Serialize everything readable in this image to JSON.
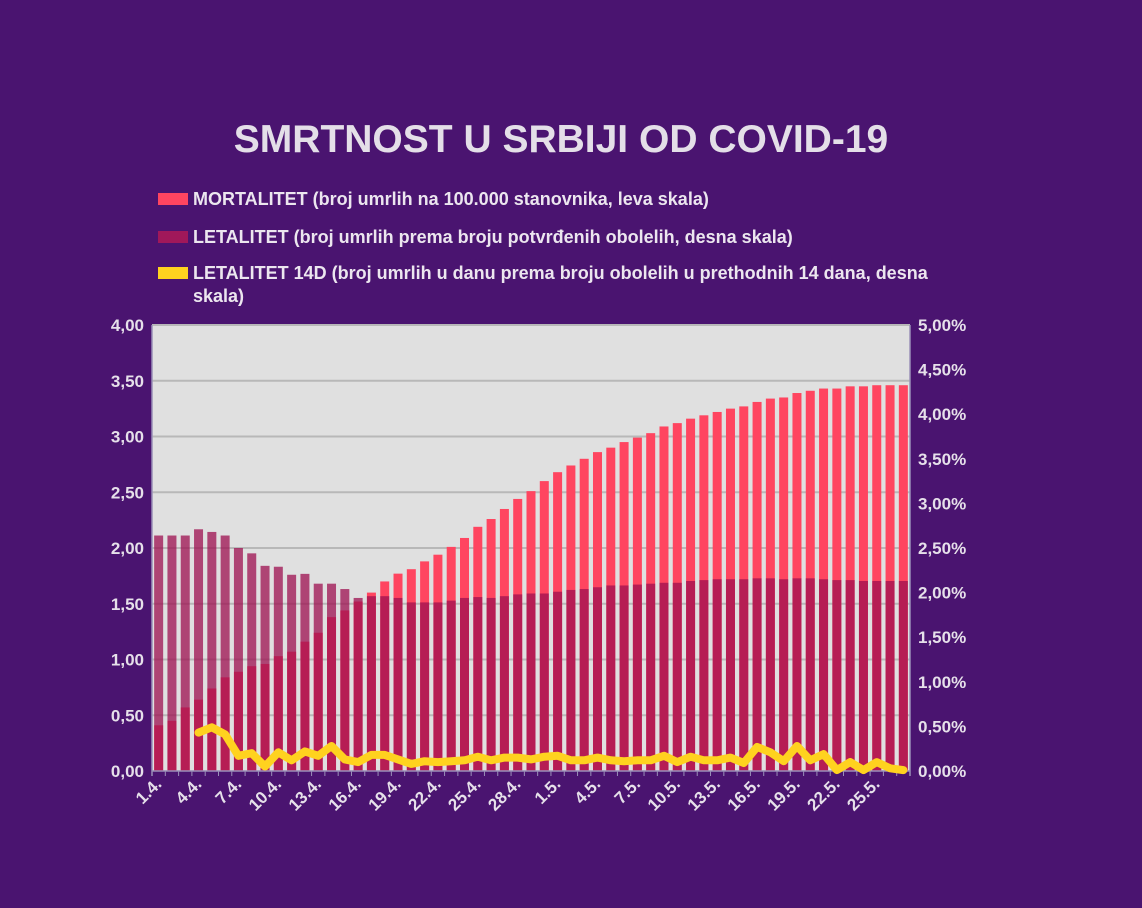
{
  "chart_data": {
    "type": "bar",
    "title": "SMRTNOST U SRBIJI OD COVID-19",
    "legend_position": "top",
    "grid": true,
    "categories": [
      "1.4.",
      "2.4.",
      "3.4.",
      "4.4.",
      "5.4.",
      "6.4.",
      "7.4.",
      "8.4.",
      "9.4.",
      "10.4.",
      "11.4.",
      "12.4.",
      "13.4.",
      "14.4.",
      "15.4.",
      "16.4.",
      "17.4.",
      "18.4.",
      "19.4.",
      "20.4.",
      "21.4.",
      "22.4.",
      "23.4.",
      "24.4.",
      "25.4.",
      "26.4.",
      "27.4.",
      "28.4.",
      "29.4.",
      "30.4.",
      "1.5.",
      "2.5.",
      "3.5.",
      "4.5.",
      "5.5.",
      "6.5.",
      "7.5.",
      "8.5.",
      "9.5.",
      "10.5.",
      "11.5.",
      "12.5.",
      "13.5.",
      "14.5.",
      "15.5.",
      "16.5.",
      "17.5.",
      "18.5.",
      "19.5.",
      "20.5.",
      "21.5.",
      "22.5.",
      "23.5.",
      "24.5.",
      "25.5.",
      "26.5.",
      "27.5."
    ],
    "x_tick_labels": [
      "1.4.",
      "4.4.",
      "7.4.",
      "10.4.",
      "13.4.",
      "16.4.",
      "19.4.",
      "22.4.",
      "25.4.",
      "28.4.",
      "1.5.",
      "4.5.",
      "7.5.",
      "10.5.",
      "13.5.",
      "16.5.",
      "19.5.",
      "22.5.",
      "25.5."
    ],
    "y_left": {
      "range": [
        0,
        4
      ],
      "ticks": [
        "0,00",
        "0,50",
        "1,00",
        "1,50",
        "2,00",
        "2,50",
        "3,00",
        "3,50",
        "4,00"
      ]
    },
    "y_right": {
      "range": [
        0,
        5
      ],
      "unit": "%",
      "ticks": [
        "0,00%",
        "0,50%",
        "1,00%",
        "1,50%",
        "2,00%",
        "2,50%",
        "3,00%",
        "3,50%",
        "4,00%",
        "4,50%",
        "5,00%"
      ]
    },
    "series": [
      {
        "name": "MORTALITET (broj umrlih na 100.000 stanovnika, leva skala)",
        "type": "bar",
        "axis": "left",
        "color": "#ff4560",
        "values": [
          0.41,
          0.45,
          0.57,
          0.64,
          0.74,
          0.84,
          0.89,
          0.94,
          0.96,
          1.03,
          1.07,
          1.16,
          1.24,
          1.38,
          1.44,
          1.52,
          1.6,
          1.7,
          1.77,
          1.81,
          1.88,
          1.94,
          2.01,
          2.09,
          2.19,
          2.26,
          2.35,
          2.44,
          2.51,
          2.6,
          2.68,
          2.74,
          2.8,
          2.86,
          2.9,
          2.95,
          2.99,
          3.03,
          3.09,
          3.12,
          3.16,
          3.19,
          3.22,
          3.25,
          3.27,
          3.31,
          3.34,
          3.35,
          3.39,
          3.41,
          3.43,
          3.43,
          3.45,
          3.45,
          3.46,
          3.46,
          3.46
        ]
      },
      {
        "name": "LETALITET (broj umrlih prema broju potvrđenih obolelih, desna skala)",
        "type": "bar",
        "axis": "right",
        "color": "#9e1050",
        "values": [
          2.64,
          2.64,
          2.64,
          2.71,
          2.68,
          2.64,
          2.5,
          2.44,
          2.3,
          2.29,
          2.2,
          2.21,
          2.1,
          2.1,
          2.04,
          1.94,
          1.96,
          1.96,
          1.94,
          1.89,
          1.89,
          1.89,
          1.91,
          1.94,
          1.95,
          1.94,
          1.96,
          1.98,
          1.99,
          1.99,
          2.01,
          2.03,
          2.04,
          2.06,
          2.08,
          2.08,
          2.09,
          2.1,
          2.11,
          2.11,
          2.13,
          2.14,
          2.15,
          2.15,
          2.15,
          2.16,
          2.16,
          2.15,
          2.16,
          2.16,
          2.15,
          2.14,
          2.14,
          2.13,
          2.13,
          2.13,
          2.13
        ]
      },
      {
        "name": "LETALITET 14D (broj umrlih u danu prema broju obolelih u prethodnih 14 dana, desna skala)",
        "type": "line",
        "axis": "right",
        "color": "#ffd21f",
        "values": [
          null,
          null,
          null,
          0.43,
          0.49,
          0.41,
          0.17,
          0.2,
          0.05,
          0.21,
          0.12,
          0.22,
          0.17,
          0.28,
          0.13,
          0.1,
          0.18,
          0.18,
          0.13,
          0.08,
          0.11,
          0.1,
          0.11,
          0.12,
          0.16,
          0.12,
          0.15,
          0.15,
          0.13,
          0.16,
          0.17,
          0.12,
          0.12,
          0.15,
          0.12,
          0.11,
          0.12,
          0.12,
          0.17,
          0.1,
          0.16,
          0.12,
          0.12,
          0.15,
          0.09,
          0.27,
          0.21,
          0.11,
          0.28,
          0.12,
          0.19,
          0.01,
          0.1,
          0.01,
          0.1,
          0.03,
          0.01
        ]
      }
    ]
  }
}
